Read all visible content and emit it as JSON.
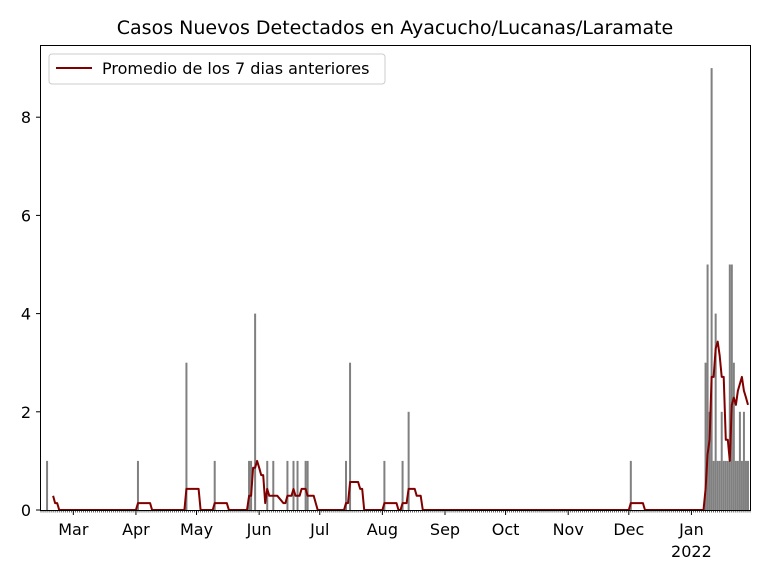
{
  "chart_data": {
    "type": "bar",
    "title": "Casos Nuevos Detectados en Ayacucho/Lucanas/Laramate",
    "xlabel": "",
    "ylabel": "",
    "x_range": [
      "2021-02-13",
      "2022-01-30"
    ],
    "ylim": [
      0,
      9.45
    ],
    "y_ticks": [
      0,
      2,
      4,
      6,
      8
    ],
    "x_ticks": [
      {
        "date": "2021-03-01",
        "label": "Mar"
      },
      {
        "date": "2021-04-01",
        "label": "Apr"
      },
      {
        "date": "2021-05-01",
        "label": "May"
      },
      {
        "date": "2021-06-01",
        "label": "Jun"
      },
      {
        "date": "2021-07-01",
        "label": "Jul"
      },
      {
        "date": "2021-08-01",
        "label": "Aug"
      },
      {
        "date": "2021-09-01",
        "label": "Sep"
      },
      {
        "date": "2021-10-01",
        "label": "Oct"
      },
      {
        "date": "2021-11-01",
        "label": "Nov"
      },
      {
        "date": "2021-12-01",
        "label": "Dec"
      },
      {
        "date": "2022-01-01",
        "label": "Jan"
      }
    ],
    "x_year_label": {
      "date": "2022-01-01",
      "label": "2022"
    },
    "grid": false,
    "legend_position": "top-left",
    "colors": {
      "bars": "#808080",
      "line": "#800000"
    },
    "bars": {
      "dates": [
        "2021-02-16",
        "2021-04-02",
        "2021-04-26",
        "2021-05-10",
        "2021-05-27",
        "2021-05-28",
        "2021-05-30",
        "2021-06-05",
        "2021-06-08",
        "2021-06-15",
        "2021-06-18",
        "2021-06-20",
        "2021-06-24",
        "2021-06-25",
        "2021-07-14",
        "2021-07-16",
        "2021-08-02",
        "2021-08-11",
        "2021-08-14",
        "2021-12-02",
        "2022-01-08",
        "2022-01-09",
        "2022-01-10",
        "2022-01-11",
        "2022-01-12",
        "2022-01-13",
        "2022-01-14",
        "2022-01-15",
        "2022-01-16",
        "2022-01-17",
        "2022-01-18",
        "2022-01-19",
        "2022-01-20",
        "2022-01-21",
        "2022-01-22",
        "2022-01-23",
        "2022-01-24",
        "2022-01-25",
        "2022-01-26",
        "2022-01-27",
        "2022-01-28",
        "2022-01-29"
      ],
      "values": [
        1,
        1,
        3,
        1,
        1,
        1,
        4,
        1,
        1,
        1,
        1,
        1,
        1,
        1,
        1,
        3,
        1,
        1,
        2,
        1,
        3,
        5,
        2,
        9,
        1,
        4,
        1,
        1,
        2,
        1,
        1,
        1,
        5,
        5,
        3,
        1,
        1,
        2,
        1,
        2,
        1,
        1
      ]
    },
    "series": [
      {
        "name": "Promedio de los 7 dias anteriores",
        "dates": [
          "2021-02-19",
          "2021-02-20",
          "2021-02-21",
          "2021-02-22",
          "2021-02-23",
          "2021-04-01",
          "2021-04-02",
          "2021-04-08",
          "2021-04-09",
          "2021-04-25",
          "2021-04-26",
          "2021-05-02",
          "2021-05-03",
          "2021-05-09",
          "2021-05-10",
          "2021-05-16",
          "2021-05-17",
          "2021-05-26",
          "2021-05-27",
          "2021-05-28",
          "2021-05-29",
          "2021-05-30",
          "2021-05-31",
          "2021-06-01",
          "2021-06-02",
          "2021-06-03",
          "2021-06-04",
          "2021-06-05",
          "2021-06-06",
          "2021-06-07",
          "2021-06-08",
          "2021-06-10",
          "2021-06-13",
          "2021-06-14",
          "2021-06-15",
          "2021-06-17",
          "2021-06-18",
          "2021-06-19",
          "2021-06-20",
          "2021-06-21",
          "2021-06-22",
          "2021-06-23",
          "2021-06-24",
          "2021-06-25",
          "2021-06-26",
          "2021-06-27",
          "2021-06-28",
          "2021-06-30",
          "2021-07-01",
          "2021-07-02",
          "2021-07-13",
          "2021-07-14",
          "2021-07-15",
          "2021-07-16",
          "2021-07-20",
          "2021-07-21",
          "2021-07-22",
          "2021-07-23",
          "2021-08-01",
          "2021-08-02",
          "2021-08-08",
          "2021-08-09",
          "2021-08-10",
          "2021-08-11",
          "2021-08-13",
          "2021-08-14",
          "2021-08-17",
          "2021-08-18",
          "2021-08-19",
          "2021-08-20",
          "2021-08-21",
          "2021-12-01",
          "2021-12-02",
          "2021-12-08",
          "2021-12-09",
          "2022-01-07",
          "2022-01-08",
          "2022-01-09",
          "2022-01-10",
          "2022-01-11",
          "2022-01-12",
          "2022-01-13",
          "2022-01-14",
          "2022-01-15",
          "2022-01-16",
          "2022-01-17",
          "2022-01-18",
          "2022-01-19",
          "2022-01-20",
          "2022-01-21",
          "2022-01-22",
          "2022-01-23",
          "2022-01-24",
          "2022-01-25",
          "2022-01-26",
          "2022-01-27",
          "2022-01-28",
          "2022-01-29"
        ],
        "values": [
          0.29,
          0.14,
          0.14,
          0,
          0,
          0,
          0.14,
          0.14,
          0,
          0,
          0.43,
          0.43,
          0,
          0,
          0.14,
          0.14,
          0,
          0,
          0.29,
          0.29,
          0.86,
          0.86,
          1,
          0.86,
          0.71,
          0.71,
          0.14,
          0.43,
          0.29,
          0.29,
          0.29,
          0.29,
          0.14,
          0.14,
          0.29,
          0.29,
          0.43,
          0.29,
          0.29,
          0.29,
          0.43,
          0.43,
          0.43,
          0.29,
          0.29,
          0.29,
          0.29,
          0,
          0,
          0,
          0,
          0.14,
          0.14,
          0.57,
          0.57,
          0.43,
          0.43,
          0,
          0,
          0.14,
          0.14,
          0,
          0,
          0.14,
          0.14,
          0.43,
          0.43,
          0.29,
          0.29,
          0.29,
          0,
          0,
          0.14,
          0.14,
          0,
          0,
          0.43,
          1.14,
          1.43,
          2.71,
          2.71,
          3.29,
          3.43,
          3.14,
          2.71,
          2.71,
          1.43,
          1.43,
          1,
          2.14,
          2.29,
          2.14,
          2.43,
          2.57,
          2.71,
          2.43,
          2.29,
          2.14
        ]
      }
    ]
  }
}
